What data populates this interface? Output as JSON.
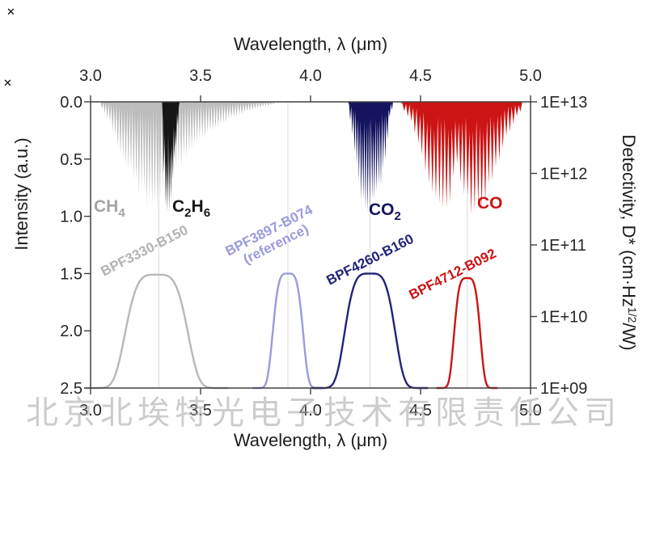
{
  "figure": {
    "watermark": {
      "text": "北京北埃特光电子技术有限责任公司",
      "color": "#ababab",
      "opacity": 0.6
    },
    "corner_marks": [
      {
        "symbol": "✕",
        "color": "#d03a3a"
      },
      {
        "symbol": "✕",
        "color": "#d03a3a"
      }
    ]
  },
  "chart_data": {
    "type": "area",
    "description": "Gas absorption spectra (inverted intensity) with bandpass filter transmission curves",
    "top_axis": {
      "title": "Wavelength, λ (μm)",
      "tick_labels": [
        "3.0",
        "3.5",
        "4.0",
        "4.5",
        "5.0"
      ],
      "tick_values": [
        3.0,
        3.5,
        4.0,
        4.5,
        5.0
      ],
      "range": [
        3.0,
        5.0
      ]
    },
    "bottom_axis": {
      "title": "Wavelength, λ (μm)",
      "tick_labels": [
        "3.0",
        "3.5",
        "4.0",
        "4.5",
        "5.0"
      ],
      "tick_values": [
        3.0,
        3.5,
        4.0,
        4.5,
        5.0
      ],
      "range": [
        3.0,
        5.0
      ]
    },
    "left_axis": {
      "title": "Intensity (a.u.)",
      "tick_labels": [
        "0.0",
        "0.5",
        "1.0",
        "1.5",
        "2.0",
        "2.5"
      ],
      "tick_values": [
        0.0,
        0.5,
        1.0,
        1.5,
        2.0,
        2.5
      ],
      "range": [
        0,
        2.5
      ],
      "inverted": true
    },
    "right_axis": {
      "title_prefix": "Detectivity, D* (cm·Hz",
      "title_sup": "1/2",
      "title_suffix": "/W)",
      "tick_labels": [
        "1E+13",
        "1E+12",
        "1E+11",
        "1E+10",
        "1E+09"
      ],
      "scale": "log",
      "range": [
        1000000000.0,
        10000000000000.0
      ]
    },
    "gridlines_x": [
      3.31,
      3.897,
      4.27,
      4.712
    ],
    "grid_color": "#d9d9d9",
    "absorption_bands": [
      {
        "key": "ch4",
        "name": "CH4",
        "label_parts": [
          "CH",
          "4"
        ],
        "color": "#bcbcbc",
        "label_color": "#a3a3a3",
        "comb_step": 0.006,
        "valley": 0.12,
        "envelope": [
          [
            3.04,
            0.03
          ],
          [
            3.09,
            0.2
          ],
          [
            3.13,
            0.45
          ],
          [
            3.17,
            0.62
          ],
          [
            3.21,
            0.8
          ],
          [
            3.26,
            0.92
          ],
          [
            3.3,
            1.0
          ],
          [
            3.33,
            0.9
          ],
          [
            3.36,
            0.72
          ],
          [
            3.4,
            0.62
          ],
          [
            3.44,
            0.5
          ],
          [
            3.49,
            0.38
          ],
          [
            3.54,
            0.3
          ],
          [
            3.6,
            0.2
          ],
          [
            3.68,
            0.12
          ],
          [
            3.76,
            0.06
          ],
          [
            3.84,
            0.02
          ]
        ]
      },
      {
        "key": "c2h6",
        "name": "C2H6",
        "label_parts": [
          "C",
          "2",
          "H",
          "6"
        ],
        "color": "#161616",
        "label_color": "#161616",
        "comb_step": 0.004,
        "valley": 0.55,
        "envelope": [
          [
            3.325,
            0.05
          ],
          [
            3.335,
            0.85
          ],
          [
            3.35,
            1.0
          ],
          [
            3.365,
            0.92
          ],
          [
            3.38,
            0.6
          ],
          [
            3.395,
            0.25
          ],
          [
            3.405,
            0.05
          ]
        ]
      },
      {
        "key": "co2",
        "name": "CO2",
        "label_parts": [
          "CO",
          "2"
        ],
        "color": "#14145f",
        "label_color": "#14145f",
        "comb_step": 0.005,
        "valley": 0.28,
        "envelope": [
          [
            4.17,
            0.03
          ],
          [
            4.2,
            0.45
          ],
          [
            4.23,
            0.9
          ],
          [
            4.26,
            1.0
          ],
          [
            4.29,
            0.95
          ],
          [
            4.32,
            0.75
          ],
          [
            4.345,
            0.45
          ],
          [
            4.36,
            0.15
          ],
          [
            4.375,
            0.04
          ]
        ]
      },
      {
        "key": "co",
        "name": "CO",
        "label_parts": [
          "CO"
        ],
        "color": "#cc1414",
        "label_color": "#cc1414",
        "comb_step": 0.008,
        "valley": 0.28,
        "envelope": [
          [
            4.41,
            0.04
          ],
          [
            4.46,
            0.2
          ],
          [
            4.5,
            0.45
          ],
          [
            4.54,
            0.75
          ],
          [
            4.58,
            1.0
          ],
          [
            4.61,
            1.03
          ],
          [
            4.64,
            0.85
          ],
          [
            4.665,
            0.58
          ],
          [
            4.69,
            0.8
          ],
          [
            4.72,
            1.0
          ],
          [
            4.76,
            1.03
          ],
          [
            4.8,
            0.88
          ],
          [
            4.84,
            0.65
          ],
          [
            4.88,
            0.4
          ],
          [
            4.92,
            0.2
          ],
          [
            4.96,
            0.07
          ]
        ]
      }
    ],
    "filters": [
      {
        "key": "bpf3330",
        "lines": [
          "BPF3330-B150"
        ],
        "color": "#b8b8b8",
        "label_color": "#b3b3b3",
        "center": 3.3,
        "width": 0.155,
        "amplitude": 0.99,
        "peak_intensity": 1.51
      },
      {
        "key": "bpf3897",
        "lines": [
          "BPF3897-B074",
          "(reference)"
        ],
        "color": "#9a9ade",
        "label_color": "#9a9ade",
        "center": 3.897,
        "width": 0.075,
        "amplitude": 1.0,
        "peak_intensity": 1.5
      },
      {
        "key": "bpf4260",
        "lines": [
          "BPF4260-B160"
        ],
        "color": "#23237a",
        "label_color": "#23237a",
        "center": 4.27,
        "width": 0.125,
        "amplitude": 1.0,
        "peak_intensity": 1.5
      },
      {
        "key": "bpf4712",
        "lines": [
          "BPF4712-B092"
        ],
        "color": "#cc1414",
        "label_color": "#cc1414",
        "center": 4.712,
        "width": 0.065,
        "amplitude": 0.96,
        "peak_intensity": 1.54
      }
    ]
  }
}
